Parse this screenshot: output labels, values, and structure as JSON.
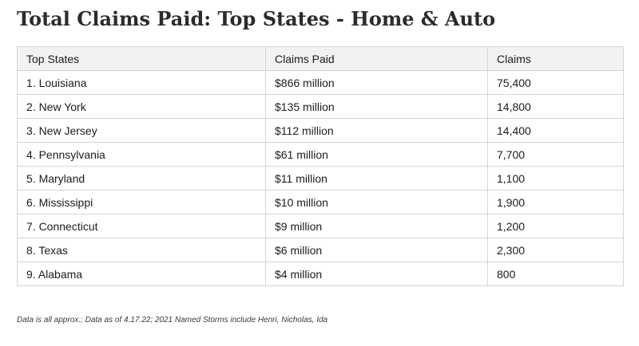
{
  "title": "Total Claims Paid: Top States - Home & Auto",
  "table": {
    "headers": [
      "Top States",
      "Claims Paid",
      "Claims"
    ],
    "rows": [
      [
        "1. Louisiana",
        "$866 million",
        "75,400"
      ],
      [
        "2. New York",
        "$135 million",
        "14,800"
      ],
      [
        "3. New Jersey",
        "$112 million",
        "14,400"
      ],
      [
        "4. Pennsylvania",
        "$61 million",
        "7,700"
      ],
      [
        "5. Maryland",
        "$11 million",
        "1,100"
      ],
      [
        "6. Mississippi",
        "$10 million",
        "1,900"
      ],
      [
        "7. Connecticut",
        "$9 million",
        "1,200"
      ],
      [
        "8. Texas",
        "$6 million",
        "2,300"
      ],
      [
        "9. Alabama",
        "$4 million",
        "800"
      ]
    ]
  },
  "footnote": "Data is all approx.; Data as of 4.17.22; 2021 Named Storms include Henri, Nicholas, Ida",
  "colors": {
    "title": "#2b2b2b",
    "header_background": "#f2f2f2",
    "border": "#d6d6d6",
    "text": "#1c1c1c"
  }
}
